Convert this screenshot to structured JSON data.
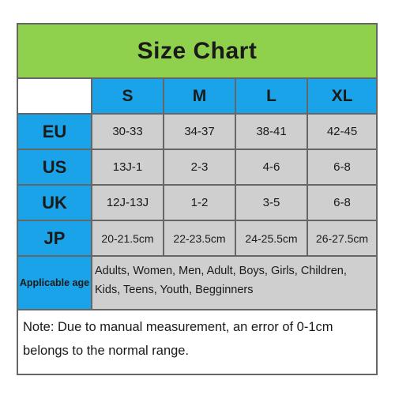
{
  "title": "Size Chart",
  "colors": {
    "title_background": "#8fd14c",
    "header_background": "#1aa3e8",
    "value_background": "#cfcfcf",
    "border": "#666666"
  },
  "size_headers": [
    "S",
    "M",
    "L",
    "XL"
  ],
  "rows": [
    {
      "region": "EU",
      "values": [
        "30-33",
        "34-37",
        "38-41",
        "42-45"
      ]
    },
    {
      "region": "US",
      "values": [
        "13J-1",
        "2-3",
        "4-6",
        "6-8"
      ]
    },
    {
      "region": "UK",
      "values": [
        "12J-13J",
        "1-2",
        "3-5",
        "6-8"
      ]
    },
    {
      "region": "JP",
      "values": [
        "20-21.5cm",
        "22-23.5cm",
        "24-25.5cm",
        "26-27.5cm"
      ]
    }
  ],
  "applicable_age": {
    "label": "Applicable age",
    "value": "Adults, Women, Men, Adult, Boys, Girls, Children, Kids, Teens, Youth, Begginners"
  },
  "note": "Note:  Due to manual measurement, an error of 0-1cm belongs to the normal range."
}
